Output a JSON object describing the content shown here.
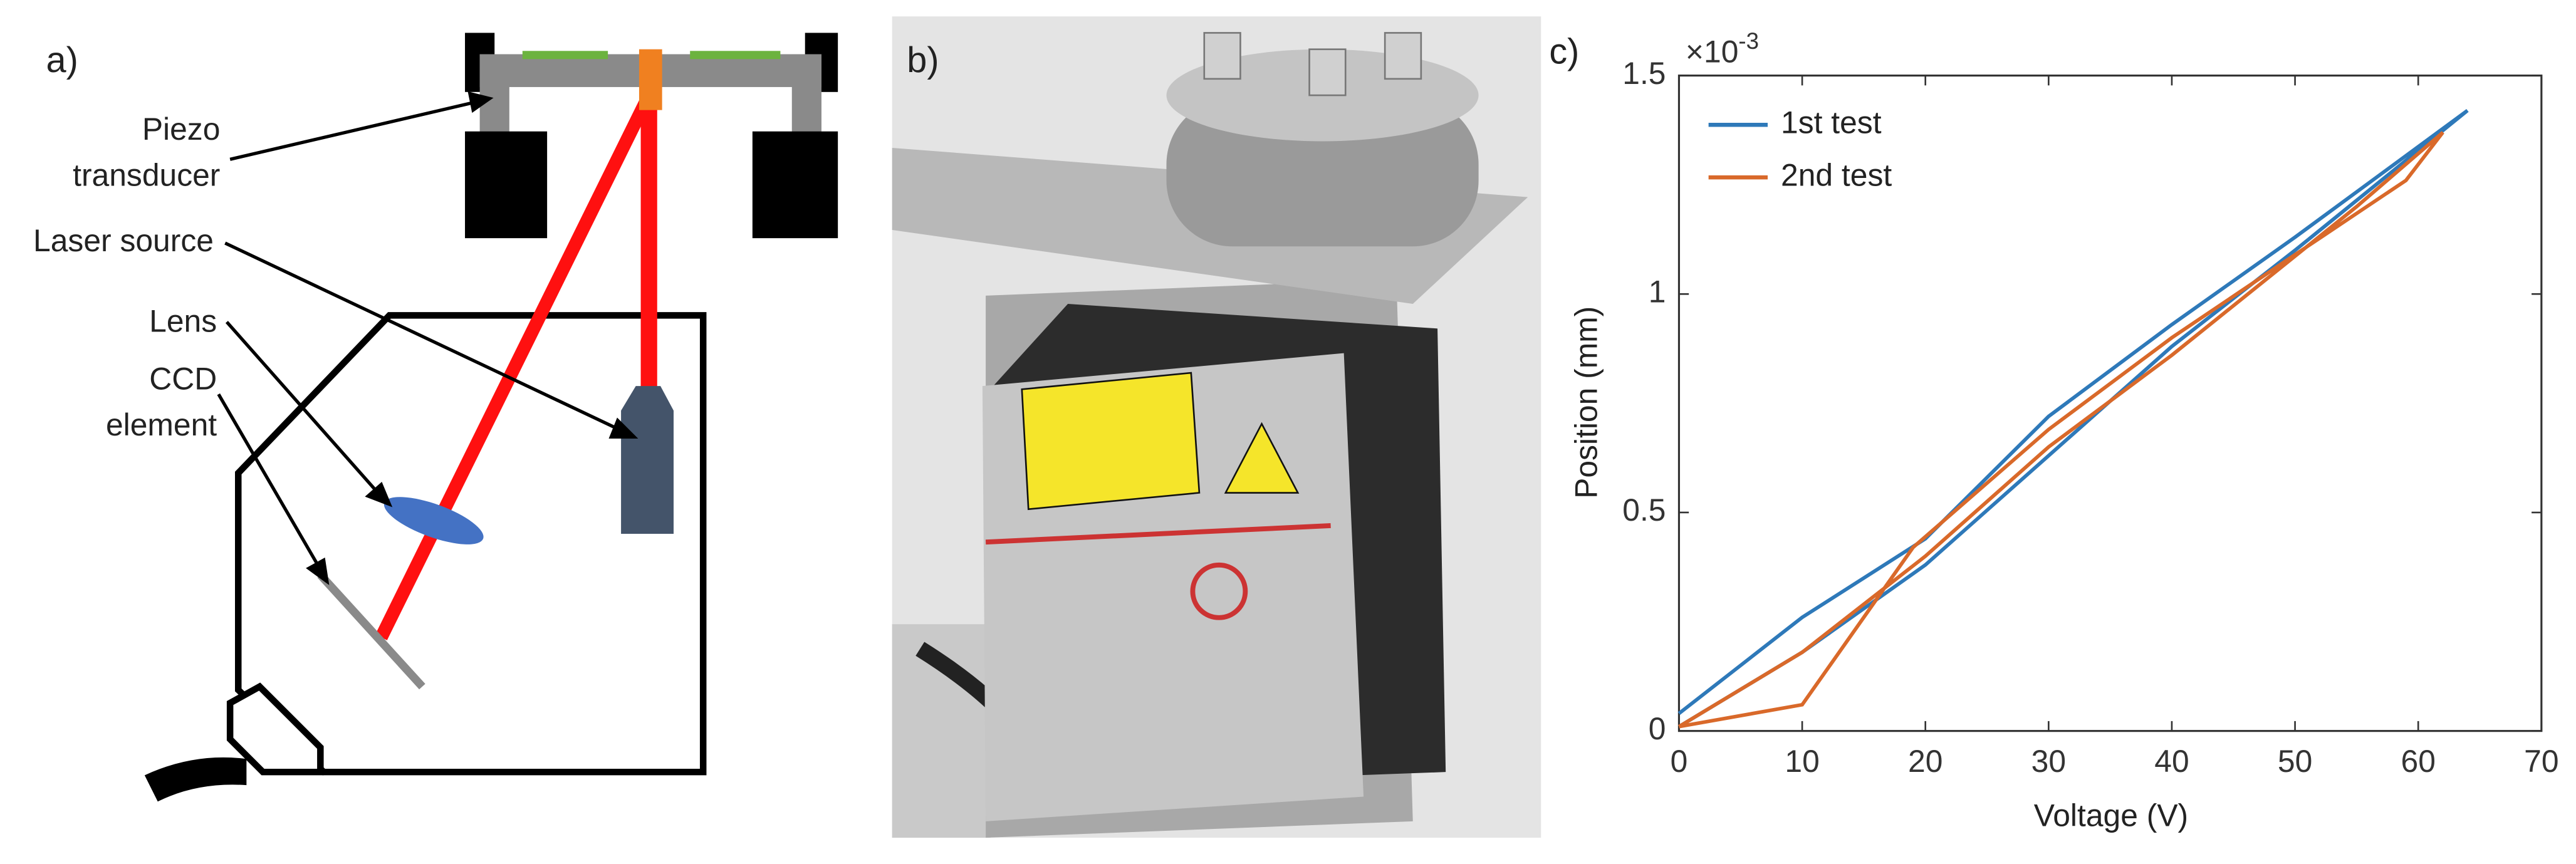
{
  "panels": {
    "a": "a)",
    "b": "b)",
    "c": "c)"
  },
  "diagram": {
    "labels": [
      {
        "lines": [
          "Piezo",
          "transducer"
        ]
      },
      {
        "lines": [
          "Laser source"
        ]
      },
      {
        "lines": [
          "Lens"
        ]
      },
      {
        "lines": [
          "CCD",
          "element"
        ]
      }
    ]
  },
  "chart_data": {
    "type": "line",
    "xlabel": "Voltage (V)",
    "ylabel": "Position (mm)",
    "exponent": {
      "base": "×10",
      "power": "-3"
    },
    "xlim": [
      0,
      70
    ],
    "xticks": [
      0,
      10,
      20,
      30,
      40,
      50,
      60,
      70
    ],
    "ylim": [
      0,
      0.0015
    ],
    "yticks": [
      {
        "value": 0,
        "label": "0"
      },
      {
        "value": 0.0005,
        "label": "0.5"
      },
      {
        "value": 0.001,
        "label": "1"
      },
      {
        "value": 0.0015,
        "label": "1.5"
      }
    ],
    "grid": false,
    "legend": "upper-left",
    "series": [
      {
        "name": "1st test",
        "color": "#2e79b9",
        "x": [
          0,
          10,
          20,
          30,
          40,
          50,
          64,
          50,
          40,
          30,
          20,
          10,
          0
        ],
        "values": [
          4e-05,
          0.00026,
          0.00044,
          0.00072,
          0.00093,
          0.00113,
          0.00142,
          0.0011,
          0.00088,
          0.00063,
          0.00038,
          0.00018,
          1e-05
        ]
      },
      {
        "name": "2nd test",
        "color": "#d9692a",
        "x": [
          0,
          10,
          19,
          30,
          40,
          50,
          59,
          62,
          55,
          40,
          30,
          20,
          10,
          0
        ],
        "values": [
          1e-05,
          6e-05,
          0.00042,
          0.00069,
          0.0009,
          0.00109,
          0.00126,
          0.00137,
          0.0012,
          0.00086,
          0.00065,
          0.0004,
          0.00018,
          1e-05
        ]
      }
    ]
  }
}
